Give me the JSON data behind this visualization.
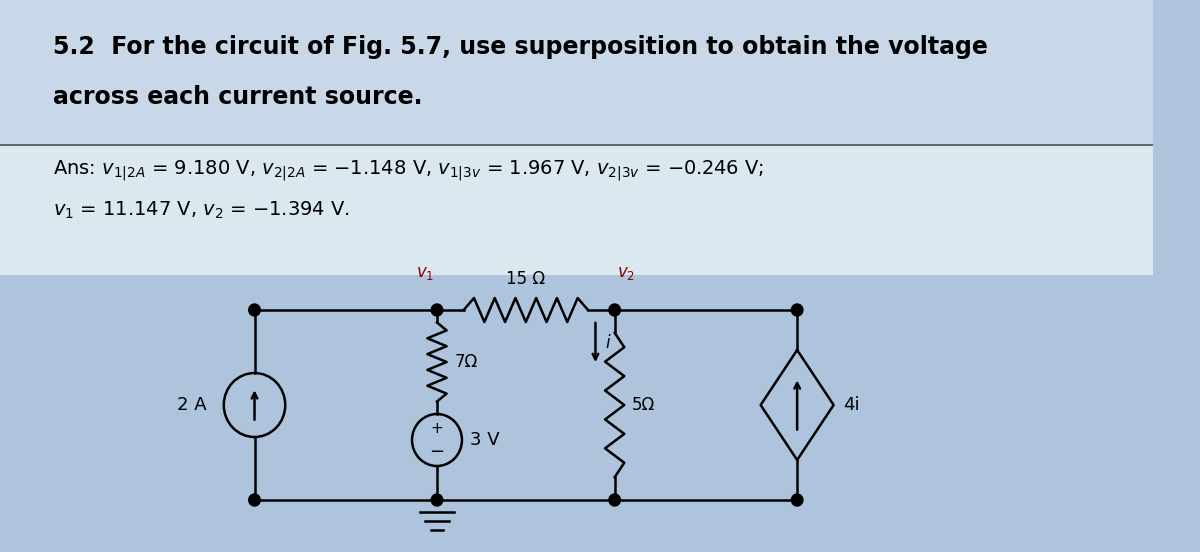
{
  "bg_color": "#adc4dc",
  "title_bg": "#c8d8e8",
  "ans_bg": "#dce8f0",
  "title_text_line1": "5.2  For the circuit of Fig. 5.7, use superposition to obtain the voltage",
  "title_text_line2": "across each current source.",
  "ans_line1": "Ans: $\\mathit{v}_{1|2A}$ = 9.180 V, $\\mathit{v}_{2|2A}$ = −1.148 V, $\\mathit{v}_{1|3v}$ = 1.967 V, $\\mathit{v}_{2|3v}$ = −0.246 V;",
  "ans_line2": "$\\mathit{v}_1$ = 11.147 V, $\\mathit{v}_2$ = −1.394 V.",
  "R15_label": "15 Ω",
  "R7_label": "7Ω",
  "R5_label": "5Ω",
  "CS1_label": "2 A",
  "VS_label": "3 V",
  "VCCS_label": "4i",
  "i_label": "i",
  "v1_label": "$v_1$",
  "v2_label": "$v_2$",
  "lw": 1.8
}
